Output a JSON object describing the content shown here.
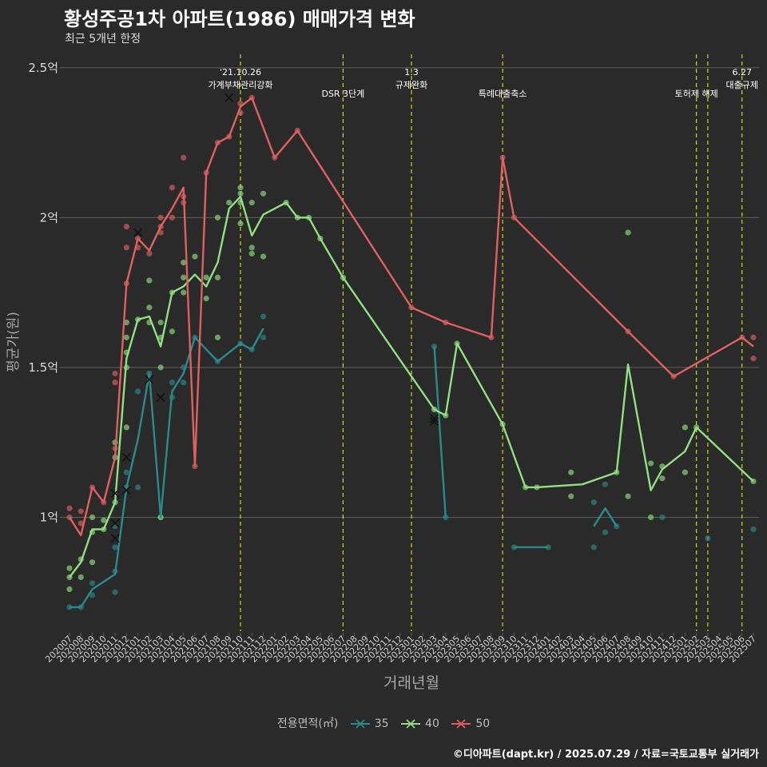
{
  "title": "황성주공1차 아파트(1986) 매매가격 변화",
  "subtitle": "최근 5개년 한정",
  "caption": "©디아파트(dapt.kr) / 2025.07.29 / 자료=국토교통부 실거래가",
  "legend": {
    "title": "전용면적(㎡)",
    "items": [
      "35",
      "40",
      "50"
    ]
  },
  "colors": {
    "background": "#2a2a2a",
    "grid": "#5e5e5e",
    "area35": "#2a8a8c",
    "area40": "#90e080",
    "area50": "#e06060",
    "event_line": "#e6e600",
    "text_muted": "#a6a6a6"
  },
  "chart_data": {
    "type": "line",
    "xlabel": "거래년월",
    "ylabel": "평균가(원)",
    "y_unit": "억",
    "ylim": [
      0.62,
      2.55
    ],
    "yticks": [
      1,
      1.5,
      2,
      2.5
    ],
    "ytick_labels": [
      "1억",
      "1.5억",
      "2억",
      "2.5억"
    ],
    "categories": [
      "202007",
      "202008",
      "202009",
      "202010",
      "202011",
      "202012",
      "202101",
      "202102",
      "202103",
      "202104",
      "202105",
      "202106",
      "202107",
      "202108",
      "202109",
      "202110",
      "202111",
      "202112",
      "202201",
      "202202",
      "202203",
      "202204",
      "202205",
      "202206",
      "202207",
      "202208",
      "202209",
      "202210",
      "202211",
      "202212",
      "202301",
      "202302",
      "202303",
      "202304",
      "202305",
      "202306",
      "202307",
      "202308",
      "202309",
      "202310",
      "202311",
      "202312",
      "202401",
      "202402",
      "202403",
      "202404",
      "202405",
      "202406",
      "202407",
      "202408",
      "202409",
      "202410",
      "202411",
      "202412",
      "202501",
      "202502",
      "202503",
      "202504",
      "202505",
      "202506",
      "202507"
    ],
    "grid": true,
    "legend_position": "bottom",
    "series": [
      {
        "name": "35",
        "points": [
          [
            "202007",
            0.7
          ],
          [
            "202008",
            0.7
          ],
          [
            "202009",
            0.76
          ],
          [
            "202011",
            0.81
          ],
          [
            "202012",
            1.1
          ],
          [
            "202101",
            1.26
          ],
          [
            "202102",
            1.48
          ],
          [
            "202103",
            1.0
          ],
          [
            "202104",
            1.42
          ],
          [
            "202105",
            1.48
          ],
          [
            "202106",
            1.6
          ],
          [
            "202108",
            1.52
          ],
          [
            "202110",
            1.58
          ],
          [
            "202111",
            1.56
          ],
          [
            "202112",
            1.63
          ],
          null,
          [
            "202303",
            1.57
          ],
          [
            "202304",
            1.0
          ],
          null,
          [
            "202310",
            0.9
          ],
          [
            "202401",
            0.9
          ],
          null,
          [
            "202405",
            0.97
          ],
          [
            "202406",
            1.03
          ],
          [
            "202407",
            0.97
          ]
        ]
      },
      {
        "name": "40",
        "points": [
          [
            "202007",
            0.8
          ],
          [
            "202008",
            0.85
          ],
          [
            "202009",
            0.96
          ],
          [
            "202010",
            0.96
          ],
          [
            "202011",
            1.05
          ],
          [
            "202012",
            1.53
          ],
          [
            "202101",
            1.66
          ],
          [
            "202102",
            1.67
          ],
          [
            "202103",
            1.57
          ],
          [
            "202104",
            1.75
          ],
          [
            "202105",
            1.77
          ],
          [
            "202106",
            1.81
          ],
          [
            "202107",
            1.77
          ],
          [
            "202108",
            1.85
          ],
          [
            "202109",
            2.03
          ],
          [
            "202110",
            2.07
          ],
          [
            "202111",
            1.94
          ],
          [
            "202112",
            2.01
          ],
          [
            "202202",
            2.05
          ],
          [
            "202203",
            2.0
          ],
          [
            "202204",
            2.0
          ],
          [
            "202205",
            1.93
          ],
          [
            "202207",
            1.8
          ],
          [
            "202303",
            1.36
          ],
          [
            "202304",
            1.34
          ],
          [
            "202305",
            1.58
          ],
          [
            "202309",
            1.31
          ],
          [
            "202311",
            1.1
          ],
          [
            "202312",
            1.1
          ],
          [
            "202404",
            1.11
          ],
          [
            "202407",
            1.15
          ],
          [
            "202408",
            1.51
          ],
          [
            "202410",
            1.09
          ],
          [
            "202411",
            1.16
          ],
          [
            "202501",
            1.22
          ],
          [
            "202502",
            1.3
          ],
          [
            "202507",
            1.12
          ]
        ]
      },
      {
        "name": "50",
        "points": [
          [
            "202007",
            1.0
          ],
          [
            "202008",
            0.94
          ],
          [
            "202009",
            1.1
          ],
          [
            "202010",
            1.05
          ],
          [
            "202011",
            1.2
          ],
          [
            "202012",
            1.78
          ],
          [
            "202101",
            1.93
          ],
          [
            "202102",
            1.89
          ],
          [
            "202103",
            1.97
          ],
          [
            "202104",
            2.03
          ],
          [
            "202105",
            2.1
          ],
          [
            "202106",
            1.17
          ],
          [
            "202107",
            2.15
          ],
          [
            "202108",
            2.25
          ],
          [
            "202109",
            2.27
          ],
          [
            "202110",
            2.37
          ],
          [
            "202111",
            2.4
          ],
          [
            "202201",
            2.2
          ],
          [
            "202203",
            2.29
          ],
          [
            "202301",
            1.7
          ],
          [
            "202304",
            1.65
          ],
          [
            "202308",
            1.6
          ],
          [
            "202309",
            2.2
          ],
          [
            "202310",
            2.0
          ],
          [
            "202408",
            1.62
          ],
          [
            "202412",
            1.47
          ],
          [
            "202506",
            1.6
          ],
          [
            "202507",
            1.57
          ]
        ]
      }
    ],
    "scatter": [
      {
        "series": "35",
        "points": [
          [
            "202007",
            0.7
          ],
          [
            "202008",
            0.7
          ],
          [
            "202009",
            0.74
          ],
          [
            "202009",
            0.78
          ],
          [
            "202011",
            0.75
          ],
          [
            "202011",
            0.82
          ],
          [
            "202011",
            0.9
          ],
          [
            "202011",
            0.97
          ],
          [
            "202012",
            1.1
          ],
          [
            "202012",
            1.15
          ],
          [
            "202101",
            1.1
          ],
          [
            "202101",
            1.42
          ],
          [
            "202102",
            1.48
          ],
          [
            "202103",
            1.0
          ],
          [
            "202104",
            1.4
          ],
          [
            "202104",
            1.45
          ],
          [
            "202105",
            1.45
          ],
          [
            "202105",
            1.5
          ],
          [
            "202106",
            1.6
          ],
          [
            "202108",
            1.52
          ],
          [
            "202110",
            1.58
          ],
          [
            "202111",
            1.56
          ],
          [
            "202112",
            1.6
          ],
          [
            "202112",
            1.67
          ],
          [
            "202303",
            1.57
          ],
          [
            "202304",
            1.0
          ],
          [
            "202310",
            0.9
          ],
          [
            "202401",
            0.9
          ],
          [
            "202405",
            0.9
          ],
          [
            "202405",
            1.05
          ],
          [
            "202406",
            0.95
          ],
          [
            "202406",
            1.11
          ],
          [
            "202407",
            0.97
          ],
          [
            "202411",
            1.0
          ],
          [
            "202503",
            0.93
          ],
          [
            "202507",
            0.96
          ]
        ]
      },
      {
        "series": "40",
        "points": [
          [
            "202007",
            0.76
          ],
          [
            "202007",
            0.8
          ],
          [
            "202007",
            0.83
          ],
          [
            "202008",
            0.8
          ],
          [
            "202008",
            0.86
          ],
          [
            "202009",
            0.85
          ],
          [
            "202009",
            0.95
          ],
          [
            "202009",
            1.0
          ],
          [
            "202010",
            0.96
          ],
          [
            "202010",
            0.99
          ],
          [
            "202011",
            1.05
          ],
          [
            "202011",
            1.2
          ],
          [
            "202011",
            1.25
          ],
          [
            "202012",
            1.3
          ],
          [
            "202012",
            1.5
          ],
          [
            "202012",
            1.55
          ],
          [
            "202012",
            1.6
          ],
          [
            "202012",
            1.65
          ],
          [
            "202101",
            1.66
          ],
          [
            "202102",
            1.65
          ],
          [
            "202102",
            1.7
          ],
          [
            "202102",
            1.79
          ],
          [
            "202103",
            1.0
          ],
          [
            "202103",
            1.5
          ],
          [
            "202103",
            1.6
          ],
          [
            "202103",
            1.65
          ],
          [
            "202104",
            1.62
          ],
          [
            "202104",
            1.75
          ],
          [
            "202105",
            1.75
          ],
          [
            "202105",
            1.8
          ],
          [
            "202105",
            1.85
          ],
          [
            "202106",
            1.87
          ],
          [
            "202107",
            1.73
          ],
          [
            "202107",
            1.8
          ],
          [
            "202108",
            1.6
          ],
          [
            "202108",
            1.8
          ],
          [
            "202108",
            2.0
          ],
          [
            "202109",
            2.05
          ],
          [
            "202110",
            1.98
          ],
          [
            "202110",
            2.05
          ],
          [
            "202110",
            2.08
          ],
          [
            "202110",
            2.1
          ],
          [
            "202111",
            1.88
          ],
          [
            "202111",
            1.9
          ],
          [
            "202111",
            2.05
          ],
          [
            "202112",
            1.87
          ],
          [
            "202112",
            2.08
          ],
          [
            "202202",
            2.05
          ],
          [
            "202203",
            2.0
          ],
          [
            "202204",
            2.0
          ],
          [
            "202205",
            1.93
          ],
          [
            "202207",
            1.8
          ],
          [
            "202303",
            1.36
          ],
          [
            "202304",
            1.34
          ],
          [
            "202305",
            1.58
          ],
          [
            "202309",
            1.31
          ],
          [
            "202311",
            1.1
          ],
          [
            "202312",
            1.1
          ],
          [
            "202403",
            1.07
          ],
          [
            "202403",
            1.15
          ],
          [
            "202407",
            1.15
          ],
          [
            "202408",
            1.07
          ],
          [
            "202408",
            1.95
          ],
          [
            "202410",
            1.0
          ],
          [
            "202410",
            1.18
          ],
          [
            "202411",
            1.13
          ],
          [
            "202411",
            1.17
          ],
          [
            "202501",
            1.15
          ],
          [
            "202501",
            1.3
          ],
          [
            "202502",
            1.3
          ],
          [
            "202507",
            1.12
          ]
        ]
      },
      {
        "series": "50",
        "points": [
          [
            "202007",
            1.0
          ],
          [
            "202007",
            1.03
          ],
          [
            "202008",
            0.98
          ],
          [
            "202008",
            1.02
          ],
          [
            "202009",
            1.1
          ],
          [
            "202010",
            1.05
          ],
          [
            "202011",
            1.23
          ],
          [
            "202011",
            1.48
          ],
          [
            "202011",
            1.45
          ],
          [
            "202012",
            1.78
          ],
          [
            "202012",
            1.9
          ],
          [
            "202012",
            1.97
          ],
          [
            "202101",
            1.93
          ],
          [
            "202101",
            1.9
          ],
          [
            "202102",
            1.88
          ],
          [
            "202103",
            1.95
          ],
          [
            "202103",
            1.97
          ],
          [
            "202103",
            2.0
          ],
          [
            "202104",
            2.0
          ],
          [
            "202104",
            2.1
          ],
          [
            "202105",
            2.05
          ],
          [
            "202105",
            2.07
          ],
          [
            "202105",
            2.2
          ],
          [
            "202106",
            1.17
          ],
          [
            "202107",
            2.15
          ],
          [
            "202108",
            2.25
          ],
          [
            "202109",
            2.27
          ],
          [
            "202110",
            2.35
          ],
          [
            "202110",
            2.38
          ],
          [
            "202111",
            2.4
          ],
          [
            "202201",
            2.2
          ],
          [
            "202203",
            2.29
          ],
          [
            "202301",
            1.7
          ],
          [
            "202304",
            1.65
          ],
          [
            "202308",
            1.6
          ],
          [
            "202309",
            2.2
          ],
          [
            "202310",
            2.0
          ],
          [
            "202408",
            1.62
          ],
          [
            "202412",
            1.47
          ],
          [
            "202506",
            1.6
          ],
          [
            "202507",
            1.53
          ],
          [
            "202507",
            1.6
          ]
        ]
      }
    ],
    "cross_markers": [
      {
        "series": "35",
        "points": [
          [
            "202011",
            0.93
          ],
          [
            "202011",
            0.98
          ],
          [
            "202012",
            1.09
          ],
          [
            "202102",
            1.46
          ],
          [
            "202103",
            1.4
          ],
          [
            "202303",
            1.32
          ]
        ]
      },
      {
        "series": "40",
        "points": [
          [
            "202011",
            1.08
          ],
          [
            "202012",
            1.2
          ],
          [
            "202303",
            1.33
          ]
        ]
      },
      {
        "series": "50",
        "points": [
          [
            "202101",
            1.95
          ],
          [
            "202109",
            2.4
          ]
        ]
      }
    ],
    "events": [
      {
        "month": "202110",
        "label": "'21.10.26\n가계부채관리강화"
      },
      {
        "month": "202207",
        "label": "DSR 3단계"
      },
      {
        "month": "202301",
        "label": "1.3\n규제완화"
      },
      {
        "month": "202309",
        "label": "특례대출축소"
      },
      {
        "month": "202502",
        "label": "토허제 해제"
      },
      {
        "month": "202503",
        "label": ""
      },
      {
        "month": "202506",
        "label": "6.27\n대출규제"
      }
    ]
  }
}
